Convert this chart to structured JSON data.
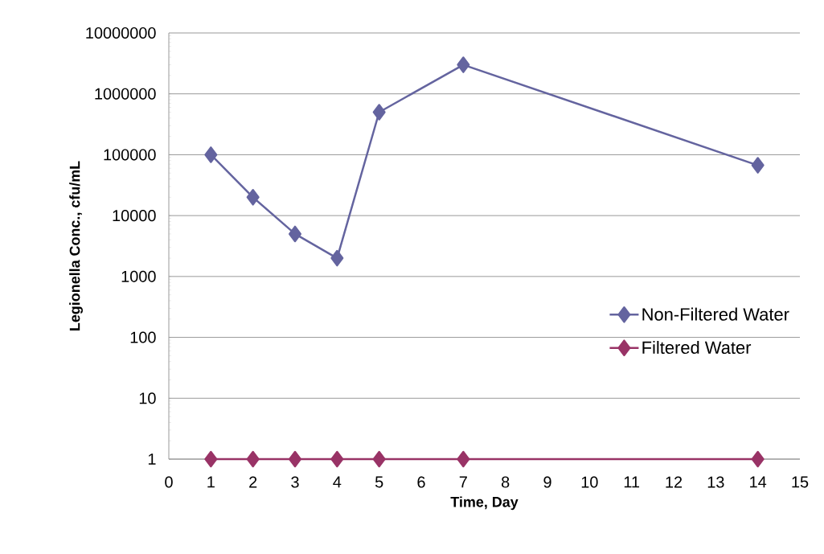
{
  "chart_data": {
    "type": "line",
    "xlabel": "Time, Day",
    "ylabel": "Legionella Conc., cfu/mL",
    "log": "y",
    "grid": "y",
    "legend": "right",
    "marker": "diamond",
    "line_style": "solid",
    "x": [
      1,
      2,
      3,
      4,
      5,
      7,
      14
    ],
    "series": [
      {
        "name": "Non-Filtered Water",
        "color": "#64649f",
        "values": [
          100000,
          20000,
          5000,
          2000,
          500000,
          3000000,
          67000
        ]
      },
      {
        "name": "Filtered Water",
        "color": "#993366",
        "values": [
          1,
          1,
          1,
          1,
          1,
          1,
          1
        ]
      }
    ],
    "xlim": [
      0,
      15
    ],
    "xticks": [
      0,
      1,
      2,
      3,
      4,
      5,
      6,
      7,
      8,
      9,
      10,
      11,
      12,
      13,
      14,
      15
    ],
    "ylim": [
      1,
      10000000
    ],
    "yticks": [
      1,
      10,
      100,
      1000,
      10000,
      100000,
      1000000,
      10000000
    ]
  }
}
